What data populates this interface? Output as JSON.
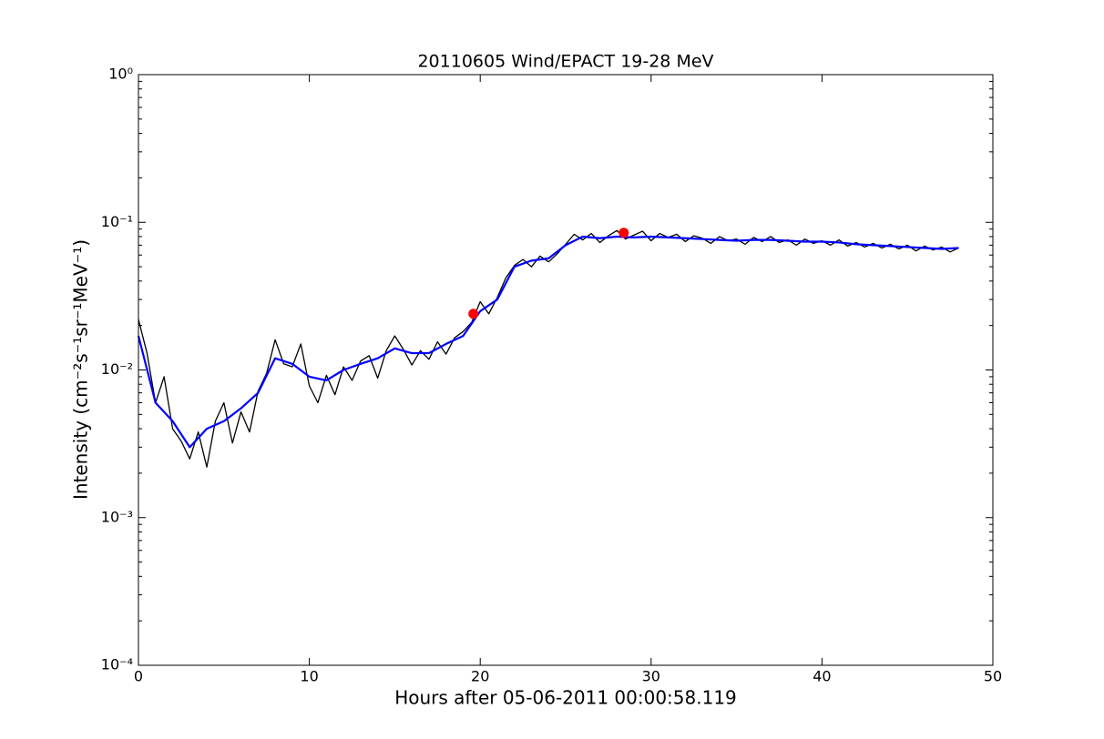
{
  "chart_data": {
    "type": "line",
    "title": "20110605 Wind/EPACT 19-28 MeV",
    "xlabel": "Hours after 05-06-2011 00:00:58.119",
    "ylabel": "Intensity (cm⁻²s⁻¹sr⁻¹MeV⁻¹)",
    "log_y": true,
    "xlim": [
      0,
      50
    ],
    "ylim": [
      0.0001,
      1
    ],
    "xticks": [
      0,
      10,
      20,
      30,
      40,
      50
    ],
    "yticks": [
      {
        "value": 0.0001,
        "label": "10⁻⁴"
      },
      {
        "value": 0.001,
        "label": "10⁻³"
      },
      {
        "value": 0.01,
        "label": "10⁻²"
      },
      {
        "value": 0.1,
        "label": "10⁻¹"
      },
      {
        "value": 1,
        "label": "10⁰"
      }
    ],
    "series": [
      {
        "color": "#000000",
        "x": [
          0,
          0.5,
          1,
          1.5,
          2,
          2.5,
          3,
          3.5,
          4,
          4.5,
          5,
          5.5,
          6,
          6.5,
          7,
          7.5,
          8,
          8.5,
          9,
          9.5,
          10,
          10.5,
          11,
          11.5,
          12,
          12.5,
          13,
          13.5,
          14,
          14.5,
          15,
          15.5,
          16,
          16.5,
          17,
          17.5,
          18,
          18.5,
          19,
          19.5,
          20,
          20.5,
          21,
          21.5,
          22,
          22.5,
          23,
          23.5,
          24,
          24.5,
          25,
          25.5,
          26,
          26.5,
          27,
          27.5,
          28,
          28.5,
          29,
          29.5,
          30,
          30.5,
          31,
          31.5,
          32,
          32.5,
          33,
          33.5,
          34,
          34.5,
          35,
          35.5,
          36,
          36.5,
          37,
          37.5,
          38,
          38.5,
          39,
          39.5,
          40,
          40.5,
          41,
          41.5,
          42,
          42.5,
          43,
          43.5,
          44,
          44.5,
          45,
          45.5,
          46,
          46.5,
          47,
          47.5,
          48
        ],
        "values": [
          0.022,
          0.013,
          0.006,
          0.009,
          0.004,
          0.0033,
          0.0025,
          0.0038,
          0.0022,
          0.0045,
          0.006,
          0.0032,
          0.0052,
          0.0038,
          0.0072,
          0.0095,
          0.016,
          0.011,
          0.0105,
          0.015,
          0.0078,
          0.006,
          0.0092,
          0.0068,
          0.0105,
          0.0085,
          0.0115,
          0.0125,
          0.0088,
          0.0135,
          0.017,
          0.0138,
          0.0108,
          0.0135,
          0.0118,
          0.0155,
          0.0128,
          0.0165,
          0.0182,
          0.021,
          0.029,
          0.024,
          0.031,
          0.042,
          0.051,
          0.056,
          0.05,
          0.059,
          0.054,
          0.061,
          0.071,
          0.083,
          0.076,
          0.084,
          0.073,
          0.081,
          0.088,
          0.077,
          0.082,
          0.087,
          0.075,
          0.084,
          0.079,
          0.083,
          0.074,
          0.081,
          0.078,
          0.072,
          0.08,
          0.075,
          0.077,
          0.071,
          0.079,
          0.074,
          0.08,
          0.073,
          0.076,
          0.07,
          0.077,
          0.072,
          0.075,
          0.07,
          0.076,
          0.069,
          0.073,
          0.068,
          0.072,
          0.067,
          0.071,
          0.066,
          0.07,
          0.064,
          0.069,
          0.065,
          0.068,
          0.063,
          0.067
        ]
      },
      {
        "color": "#0000ff",
        "x": [
          0,
          1,
          2,
          3,
          4,
          5,
          6,
          7,
          8,
          9,
          10,
          11,
          12,
          13,
          14,
          15,
          16,
          17,
          18,
          19,
          20,
          21,
          22,
          23,
          24,
          25,
          26,
          27,
          28,
          29,
          30,
          31,
          32,
          33,
          34,
          35,
          36,
          37,
          38,
          39,
          40,
          41,
          42,
          43,
          44,
          45,
          46,
          47,
          48
        ],
        "values": [
          0.017,
          0.006,
          0.0045,
          0.003,
          0.004,
          0.0045,
          0.0055,
          0.007,
          0.012,
          0.011,
          0.009,
          0.0085,
          0.01,
          0.011,
          0.012,
          0.014,
          0.013,
          0.013,
          0.015,
          0.017,
          0.025,
          0.03,
          0.05,
          0.055,
          0.057,
          0.07,
          0.08,
          0.078,
          0.08,
          0.079,
          0.08,
          0.079,
          0.078,
          0.077,
          0.076,
          0.075,
          0.076,
          0.076,
          0.075,
          0.074,
          0.074,
          0.073,
          0.071,
          0.07,
          0.069,
          0.068,
          0.067,
          0.066,
          0.067
        ]
      },
      {
        "color": "#ff0000",
        "marker": "o",
        "x": [
          19.6,
          28.4
        ],
        "values": [
          0.024,
          0.085
        ]
      }
    ]
  }
}
